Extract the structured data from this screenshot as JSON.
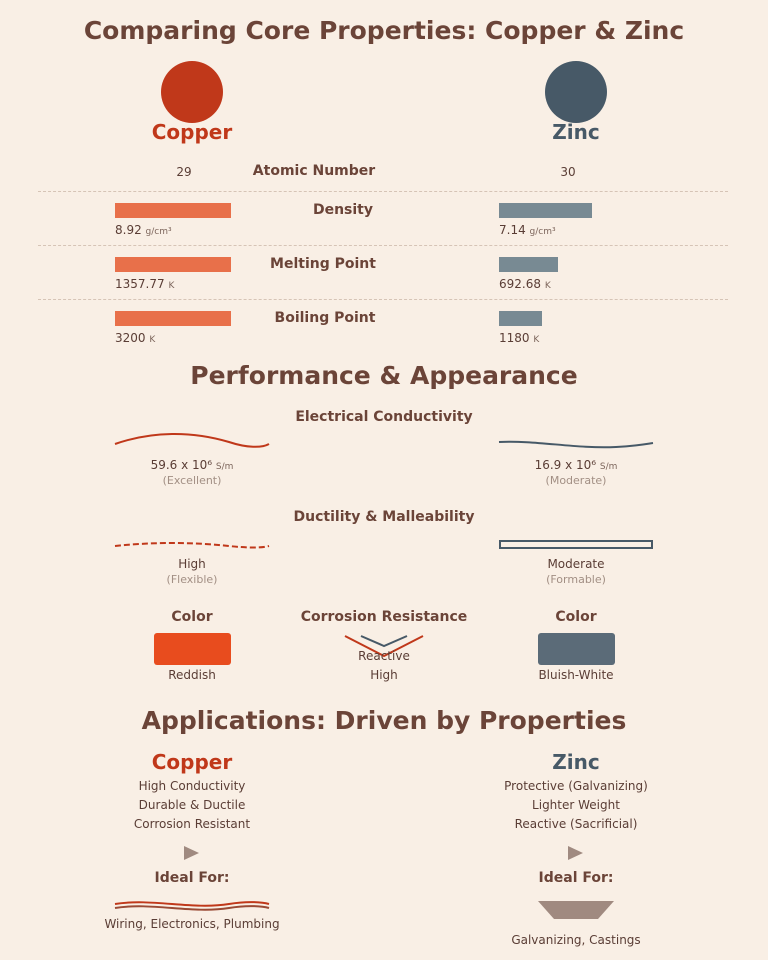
{
  "title": "Comparing Core Properties: Copper & Zinc",
  "colors": {
    "copper": "#c0381a",
    "copper_bar": "#e8704a",
    "zinc": "#475967",
    "zinc_bar": "#788a93",
    "background": "#f9efe5"
  },
  "copper_name": "Copper",
  "zinc_name": "Zinc",
  "atomic": {
    "label": "Atomic Number",
    "copper": "29",
    "zinc": "30"
  },
  "bars": [
    {
      "label": "Density",
      "copper_value": "8.92",
      "copper_unit": "g/cm³",
      "copper_fraction": 1.0,
      "zinc_value": "7.14",
      "zinc_unit": "g/cm³",
      "zinc_fraction": 0.8
    },
    {
      "label": "Melting Point",
      "copper_value": "1357.77",
      "copper_unit": "K",
      "copper_fraction": 1.0,
      "zinc_value": "692.68",
      "zinc_unit": "K",
      "zinc_fraction": 0.51
    },
    {
      "label": "Boiling Point",
      "copper_value": "3200",
      "copper_unit": "K",
      "copper_fraction": 1.0,
      "zinc_value": "1180",
      "zinc_unit": "K",
      "zinc_fraction": 0.37
    }
  ],
  "performance": {
    "title": "Performance & Appearance",
    "conductivity": {
      "label": "Electrical Conductivity",
      "copper_value": "59.6 x 10⁶",
      "copper_unit": "S/m",
      "copper_rating": "(Excellent)",
      "zinc_value": "16.9 x 10⁶",
      "zinc_unit": "S/m",
      "zinc_rating": "(Moderate)"
    },
    "ductility": {
      "label": "Ductility & Malleability",
      "copper_value": "High",
      "copper_sub": "(Flexible)",
      "zinc_value": "Moderate",
      "zinc_sub": "(Formable)"
    },
    "color_label": "Color",
    "copper_color": "Reddish",
    "zinc_color": "Bluish-White",
    "corrosion": {
      "label": "Corrosion Resistance",
      "zinc_value": "Reactive",
      "copper_value": "High"
    }
  },
  "applications": {
    "title": "Applications: Driven by Properties",
    "copper_traits": [
      "High Conductivity",
      "Durable & Ductile",
      "Corrosion Resistant"
    ],
    "zinc_traits": [
      "Protective (Galvanizing)",
      "Lighter Weight",
      "Reactive (Sacrificial)"
    ],
    "ideal_label": "Ideal For:",
    "copper_uses": "Wiring, Electronics, Plumbing",
    "zinc_uses": "Galvanizing, Castings"
  }
}
